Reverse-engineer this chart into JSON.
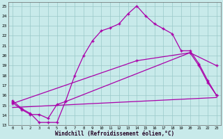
{
  "bg_color": "#c8eaea",
  "line_color": "#aa00aa",
  "grid_color": "#99c8c8",
  "xlabel": "Windchill (Refroidissement éolien,°C)",
  "xlim_min": -0.5,
  "xlim_max": 23.5,
  "ylim_min": 13.0,
  "ylim_max": 25.4,
  "xticks": [
    0,
    1,
    2,
    3,
    4,
    5,
    6,
    7,
    8,
    9,
    10,
    11,
    12,
    13,
    14,
    15,
    16,
    17,
    18,
    19,
    20,
    21,
    22,
    23
  ],
  "yticks": [
    13,
    14,
    15,
    16,
    17,
    18,
    19,
    20,
    21,
    22,
    23,
    24,
    25
  ],
  "line1_x": [
    0,
    1,
    2,
    3,
    4,
    5,
    6,
    7,
    8,
    9,
    10,
    11,
    12,
    13,
    14,
    15,
    16,
    17,
    18,
    19,
    20,
    21,
    22,
    23
  ],
  "line1_y": [
    15.5,
    14.7,
    14.2,
    13.3,
    13.3,
    13.3,
    15.5,
    18.0,
    20.0,
    21.5,
    22.5,
    22.8,
    23.2,
    24.2,
    25.0,
    24.0,
    23.2,
    22.7,
    22.2,
    20.5,
    20.5,
    19.2,
    17.5,
    16.0
  ],
  "line2_x": [
    0,
    1,
    2,
    3,
    4,
    5,
    6,
    20,
    21,
    22,
    23
  ],
  "line2_y": [
    15.3,
    14.6,
    14.1,
    14.1,
    13.7,
    15.1,
    15.4,
    20.3,
    19.0,
    17.3,
    16.0
  ],
  "line3_x": [
    0,
    14,
    20,
    23
  ],
  "line3_y": [
    15.2,
    19.5,
    20.3,
    19.0
  ],
  "line4_x": [
    0,
    23
  ],
  "line4_y": [
    14.8,
    15.8
  ]
}
